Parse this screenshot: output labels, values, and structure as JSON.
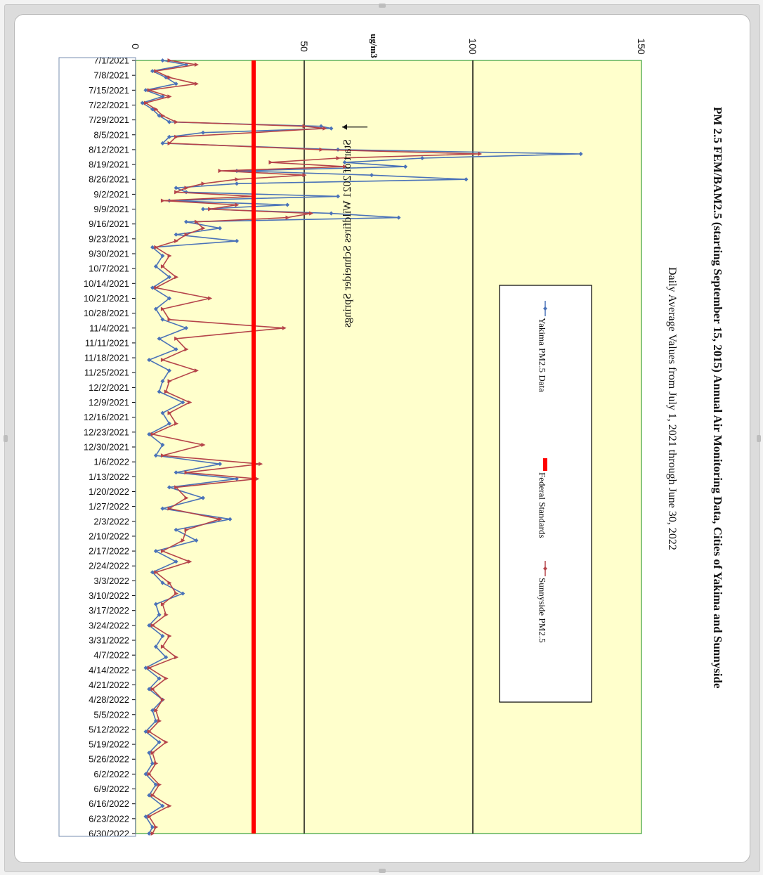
{
  "chart_data": {
    "type": "line",
    "title": "PM 2.5 FEM/BAM2.5 (starting September 15, 2015) Annual Air Monitoring Data, Cities of Yakima and Sunnyside",
    "subtitle": "Daily Average Values from July 1, 2021 through June 30, 2022",
    "ylabel": "ug/m3",
    "xlim": [
      "7/1/2021",
      "6/30/2022"
    ],
    "ylim": [
      0,
      150
    ],
    "y_ticks": [
      0,
      50,
      100,
      150
    ],
    "x_tick_labels": [
      "7/1/2021",
      "7/8/2021",
      "7/15/2021",
      "7/22/2021",
      "7/29/2021",
      "8/5/2021",
      "8/12/2021",
      "8/19/2021",
      "8/26/2021",
      "9/2/2021",
      "9/9/2021",
      "9/16/2021",
      "9/23/2021",
      "9/30/2021",
      "10/7/2021",
      "10/14/2021",
      "10/21/2021",
      "10/28/2021",
      "11/4/2021",
      "11/11/2021",
      "11/18/2021",
      "11/25/2021",
      "12/2/2021",
      "12/9/2021",
      "12/16/2021",
      "12/23/2021",
      "12/30/2021",
      "1/6/2022",
      "1/13/2022",
      "1/20/2022",
      "1/27/2022",
      "2/3/2022",
      "2/10/2022",
      "2/17/2022",
      "2/24/2022",
      "3/3/2022",
      "3/10/2022",
      "3/17/2022",
      "3/24/2022",
      "3/31/2022",
      "4/7/2022",
      "4/14/2022",
      "4/21/2022",
      "4/28/2022",
      "5/5/2022",
      "5/12/2022",
      "5/19/2022",
      "5/26/2022",
      "6/2/2022",
      "6/9/2022",
      "6/16/2022",
      "6/23/2022",
      "6/30/2022"
    ],
    "grid": "horizontal lines at 50 and 100",
    "plot_background": "#ffffcc",
    "legend": {
      "placement": "center-right",
      "entries": [
        "Yakima PM2.5 Data",
        "Federal Standards",
        "Sunnyside PM2.5"
      ]
    },
    "annotation": {
      "text": "Start of 2021 Wildfires Schneider Springs",
      "x": "8/3/2021",
      "y": 60
    },
    "series": [
      {
        "name": "Yakima PM2.5 Data",
        "color": "#4a72b8",
        "marker": "diamond",
        "x": [
          "7/1/2021",
          "7/3/2021",
          "7/6/2021",
          "7/9/2021",
          "7/12/2021",
          "7/15/2021",
          "7/18/2021",
          "7/21/2021",
          "7/24/2021",
          "7/27/2021",
          "7/30/2021",
          "8/1/2021",
          "8/2/2021",
          "8/4/2021",
          "8/6/2021",
          "8/9/2021",
          "8/12/2021",
          "8/14/2021",
          "8/16/2021",
          "8/18/2021",
          "8/20/2021",
          "8/22/2021",
          "8/24/2021",
          "8/26/2021",
          "8/28/2021",
          "8/30/2021",
          "9/1/2021",
          "9/3/2021",
          "9/5/2021",
          "9/7/2021",
          "9/9/2021",
          "9/11/2021",
          "9/13/2021",
          "9/15/2021",
          "9/18/2021",
          "9/21/2021",
          "9/24/2021",
          "9/27/2021",
          "10/1/2021",
          "10/6/2021",
          "10/11/2021",
          "10/16/2021",
          "10/21/2021",
          "10/26/2021",
          "10/31/2021",
          "11/4/2021",
          "11/9/2021",
          "11/14/2021",
          "11/19/2021",
          "11/24/2021",
          "11/29/2021",
          "12/4/2021",
          "12/9/2021",
          "12/14/2021",
          "12/19/2021",
          "12/24/2021",
          "12/29/2021",
          "1/3/2022",
          "1/7/2022",
          "1/11/2022",
          "1/14/2022",
          "1/18/2022",
          "1/23/2022",
          "1/28/2022",
          "2/2/2022",
          "2/7/2022",
          "2/12/2022",
          "2/17/2022",
          "2/22/2022",
          "2/27/2022",
          "3/4/2022",
          "3/9/2022",
          "3/14/2022",
          "3/19/2022",
          "3/24/2022",
          "3/29/2022",
          "4/3/2022",
          "4/8/2022",
          "4/13/2022",
          "4/18/2022",
          "4/23/2022",
          "4/28/2022",
          "5/3/2022",
          "5/8/2022",
          "5/13/2022",
          "5/18/2022",
          "5/23/2022",
          "5/28/2022",
          "6/2/2022",
          "6/7/2022",
          "6/12/2022",
          "6/17/2022",
          "6/22/2022",
          "6/27/2022",
          "6/30/2022"
        ],
        "y": [
          8,
          15,
          5,
          9,
          12,
          3,
          8,
          2,
          5,
          7,
          10,
          55,
          58,
          20,
          10,
          8,
          60,
          132,
          85,
          62,
          80,
          30,
          70,
          98,
          30,
          12,
          15,
          60,
          10,
          45,
          20,
          58,
          78,
          15,
          25,
          12,
          30,
          5,
          8,
          6,
          10,
          5,
          10,
          6,
          8,
          15,
          7,
          12,
          4,
          10,
          8,
          7,
          14,
          8,
          10,
          4,
          8,
          6,
          25,
          12,
          30,
          10,
          20,
          8,
          28,
          12,
          18,
          6,
          12,
          5,
          8,
          14,
          6,
          7,
          4,
          8,
          6,
          9,
          3,
          7,
          4,
          8,
          5,
          6,
          3,
          7,
          4,
          5,
          3,
          6,
          4,
          8,
          3,
          5,
          4
        ]
      },
      {
        "name": "Sunnyside PM2.5",
        "color": "#b5444a",
        "marker": "triangle",
        "x": [
          "7/1/2021",
          "7/3/2021",
          "7/6/2021",
          "7/9/2021",
          "7/12/2021",
          "7/15/2021",
          "7/18/2021",
          "7/21/2021",
          "7/24/2021",
          "7/27/2021",
          "7/30/2021",
          "8/1/2021",
          "8/2/2021",
          "8/4/2021",
          "8/6/2021",
          "8/9/2021",
          "8/12/2021",
          "8/14/2021",
          "8/16/2021",
          "8/18/2021",
          "8/20/2021",
          "8/22/2021",
          "8/24/2021",
          "8/26/2021",
          "8/28/2021",
          "8/30/2021",
          "9/1/2021",
          "9/3/2021",
          "9/5/2021",
          "9/7/2021",
          "9/9/2021",
          "9/11/2021",
          "9/13/2021",
          "9/15/2021",
          "9/18/2021",
          "9/21/2021",
          "9/24/2021",
          "9/27/2021",
          "10/1/2021",
          "10/6/2021",
          "10/11/2021",
          "10/16/2021",
          "10/21/2021",
          "10/26/2021",
          "10/31/2021",
          "11/4/2021",
          "11/9/2021",
          "11/14/2021",
          "11/19/2021",
          "11/24/2021",
          "11/29/2021",
          "12/4/2021",
          "12/9/2021",
          "12/14/2021",
          "12/19/2021",
          "12/24/2021",
          "12/29/2021",
          "1/3/2022",
          "1/7/2022",
          "1/11/2022",
          "1/14/2022",
          "1/18/2022",
          "1/23/2022",
          "1/28/2022",
          "2/2/2022",
          "2/7/2022",
          "2/12/2022",
          "2/17/2022",
          "2/22/2022",
          "2/27/2022",
          "3/4/2022",
          "3/9/2022",
          "3/14/2022",
          "3/19/2022",
          "3/24/2022",
          "3/29/2022",
          "4/3/2022",
          "4/8/2022",
          "4/13/2022",
          "4/18/2022",
          "4/23/2022",
          "4/28/2022",
          "5/3/2022",
          "5/8/2022",
          "5/13/2022",
          "5/18/2022",
          "5/23/2022",
          "5/28/2022",
          "6/2/2022",
          "6/7/2022",
          "6/12/2022",
          "6/17/2022",
          "6/22/2022",
          "6/27/2022",
          "6/30/2022"
        ],
        "y": [
          10,
          18,
          6,
          10,
          18,
          4,
          10,
          3,
          6,
          8,
          12,
          50,
          56,
          35,
          12,
          10,
          55,
          102,
          60,
          40,
          62,
          25,
          50,
          30,
          20,
          15,
          12,
          35,
          8,
          30,
          22,
          52,
          45,
          18,
          20,
          15,
          12,
          6,
          10,
          8,
          12,
          6,
          22,
          8,
          10,
          44,
          12,
          15,
          8,
          18,
          10,
          9,
          16,
          10,
          12,
          5,
          20,
          8,
          37,
          15,
          36,
          12,
          15,
          10,
          25,
          15,
          14,
          8,
          16,
          6,
          10,
          12,
          8,
          9,
          5,
          10,
          8,
          12,
          4,
          9,
          5,
          8,
          6,
          7,
          4,
          9,
          5,
          6,
          4,
          7,
          5,
          10,
          4,
          6,
          5
        ]
      },
      {
        "name": "Federal Standards",
        "color": "#ff0000",
        "x": [
          "7/1/2021",
          "6/30/2022"
        ],
        "y": [
          35,
          35
        ]
      }
    ]
  }
}
